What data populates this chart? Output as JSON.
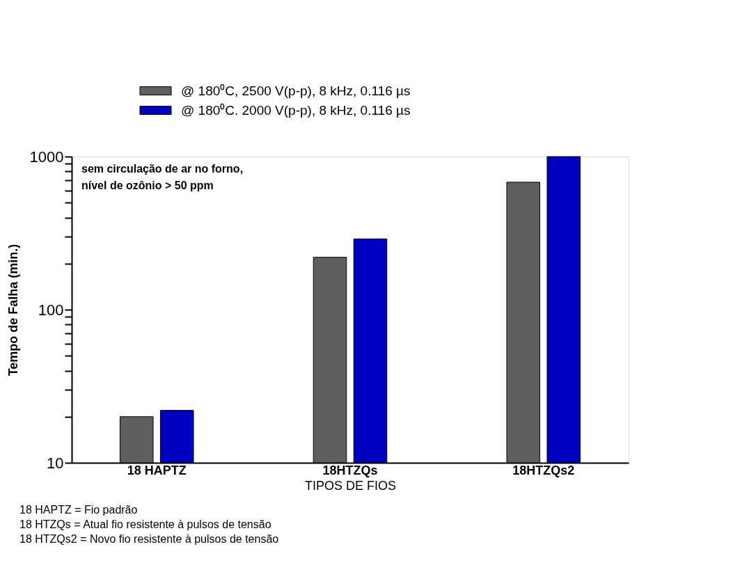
{
  "chart_data": {
    "type": "bar",
    "xlabel": "TIPOS DE FIOS",
    "ylabel": "Tempo de Falha (min.)",
    "categories": [
      "18 HAPTZ",
      "18HTZQs",
      "18HTZQs2"
    ],
    "series": [
      {
        "name": "@ 180⁰C, 2500 V(p-p), 8 kHz, 0.116 µs",
        "color": "#5f5f5f",
        "values": [
          20,
          220,
          680
        ]
      },
      {
        "name": "@ 180⁰C. 2000 V(p-p), 8 kHz, 0.116 µs",
        "color": "#0000c0",
        "values": [
          22,
          290,
          1000
        ]
      }
    ],
    "log": "y",
    "ylim": [
      10,
      1000
    ],
    "yticks": [
      10,
      {
        "value": 20,
        "label": null
      },
      {
        "value": 30,
        "label": null
      },
      {
        "value": 40,
        "label": null
      },
      {
        "value": 50,
        "label": null
      },
      {
        "value": 60,
        "label": null
      },
      {
        "value": 70,
        "label": null
      },
      {
        "value": 80,
        "label": null
      },
      {
        "value": 90,
        "label": null
      },
      100,
      {
        "value": 200,
        "label": null
      },
      {
        "value": 300,
        "label": null
      },
      {
        "value": 400,
        "label": null
      },
      {
        "value": 500,
        "label": null
      },
      {
        "value": 600,
        "label": null
      },
      {
        "value": 700,
        "label": null
      },
      {
        "value": 800,
        "label": null
      },
      {
        "value": 900,
        "label": null
      },
      1000
    ],
    "grid": false,
    "legend": "top",
    "annotations": [
      "sem circulação de ar no forno,\nnível de ozônio > 50 ppm",
      "18 HAPTZ = Fio padrão",
      "18 HTZQs = Atual fio resistente à pulsos de tensão",
      "18 HTZQs2 = Novo fio resistente à pulsos de tensão"
    ]
  }
}
